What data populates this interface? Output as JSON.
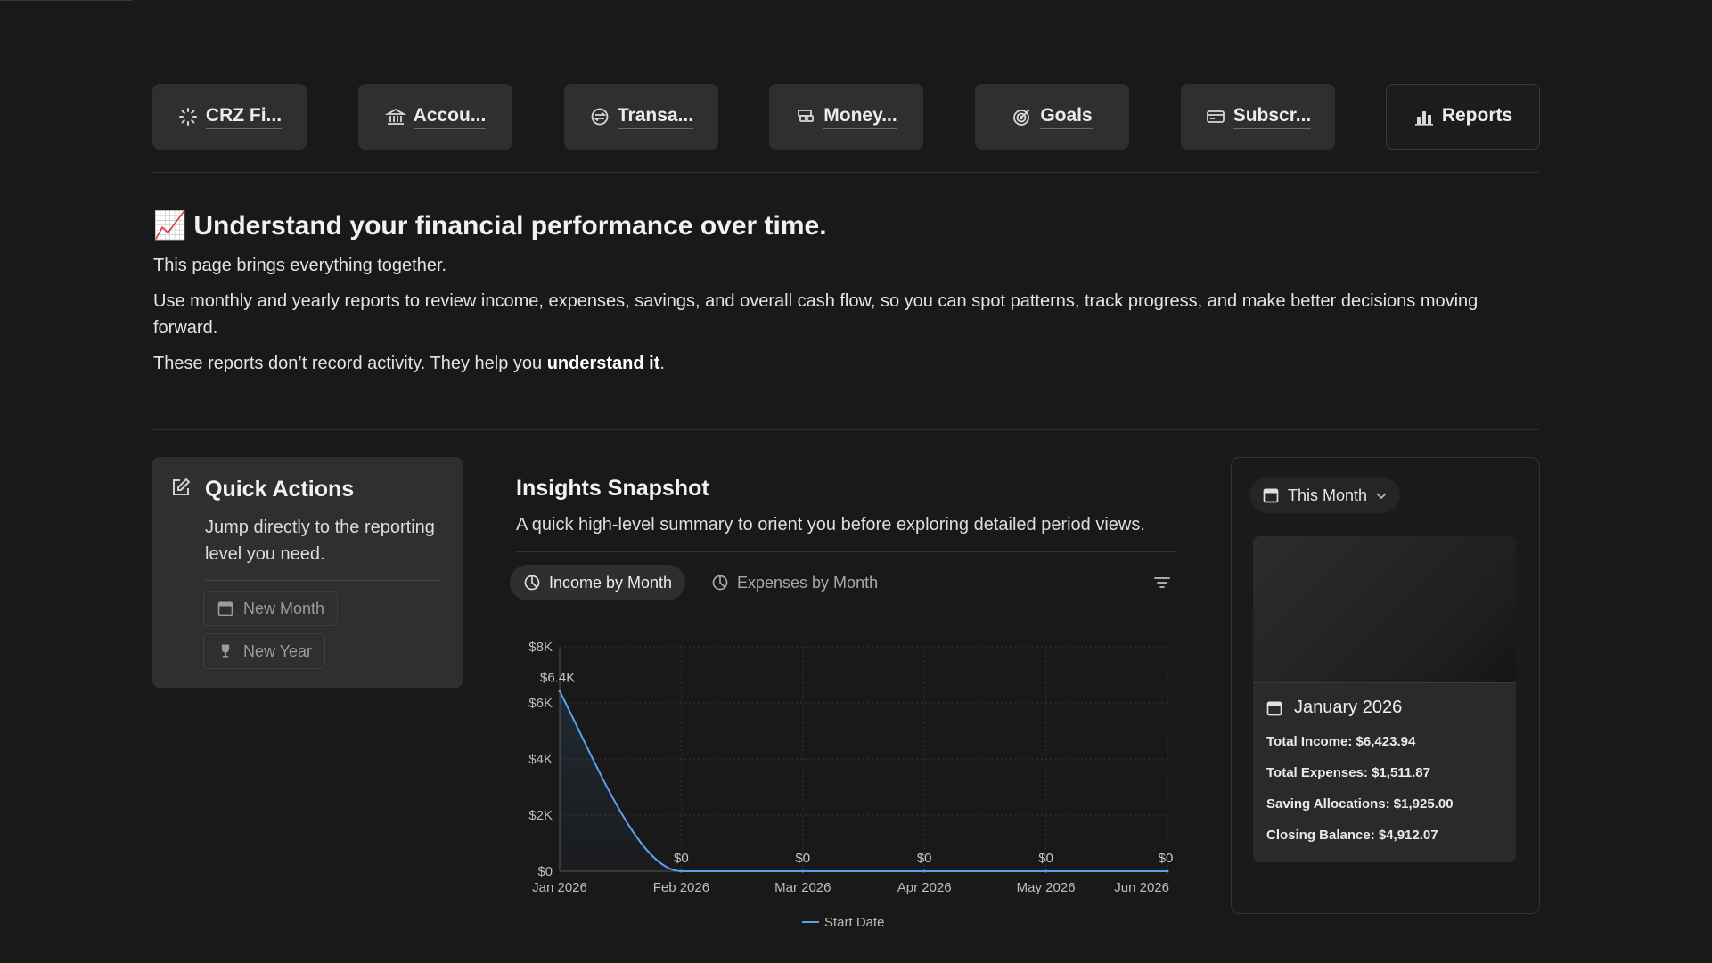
{
  "nav": {
    "items": [
      {
        "label": "CRZ Fi...",
        "icon": "loader-icon"
      },
      {
        "label": "Accou...",
        "icon": "bank-icon"
      },
      {
        "label": "Transa...",
        "icon": "exchange-icon"
      },
      {
        "label": "Money...",
        "icon": "money-stack-icon"
      },
      {
        "label": "Goals",
        "icon": "target-icon"
      },
      {
        "label": "Subscr...",
        "icon": "card-icon"
      },
      {
        "label": "Reports",
        "icon": "bar-chart-icon"
      }
    ]
  },
  "intro": {
    "emoji": "📈",
    "title": "Understand your financial performance over time.",
    "p1": "This page brings everything together.",
    "p2": "Use monthly and yearly reports to review income, expenses, savings, and overall cash flow, so you can spot patterns, track progress, and make better decisions moving forward.",
    "p3_pre": "These reports don’t record activity. They help you ",
    "p3_bold": "understand it",
    "p3_post": "."
  },
  "quick_actions": {
    "title": "Quick Actions",
    "description": "Jump directly to the reporting level you need.",
    "buttons": [
      {
        "label": "New Month",
        "icon": "calendar-icon"
      },
      {
        "label": "New Year",
        "icon": "trophy-icon"
      }
    ]
  },
  "insights": {
    "title": "Insights Snapshot",
    "description": "A quick high-level summary to orient you before exploring detailed period views.",
    "tabs": [
      "Income by Month",
      "Expenses by Month"
    ],
    "active_tab": "Income by Month"
  },
  "chart_data": {
    "type": "area",
    "categories": [
      "Jan 2026",
      "Feb 2026",
      "Mar 2026",
      "Apr 2026",
      "May 2026",
      "Jun 2026"
    ],
    "series": [
      {
        "name": "Start Date",
        "values": [
          6423.94,
          0,
          0,
          0,
          0,
          0
        ]
      }
    ],
    "data_labels": [
      "$6.4K",
      "$0",
      "$0",
      "$0",
      "$0",
      "$0"
    ],
    "y_ticks": [
      "$0",
      "$2K",
      "$4K",
      "$6K",
      "$8K"
    ],
    "ylim": [
      0,
      8000
    ],
    "grid": true,
    "legend_position": "bottom",
    "line_color": "#5aa0ee"
  },
  "summary": {
    "selector": "This Month",
    "card": {
      "title": "January 2026",
      "total_income": "Total Income: $6,423.94",
      "total_expenses": "Total Expenses: $1,511.87",
      "saving_allocations": "Saving Allocations: $1,925.00",
      "closing_balance": "Closing Balance: $4,912.07"
    }
  }
}
